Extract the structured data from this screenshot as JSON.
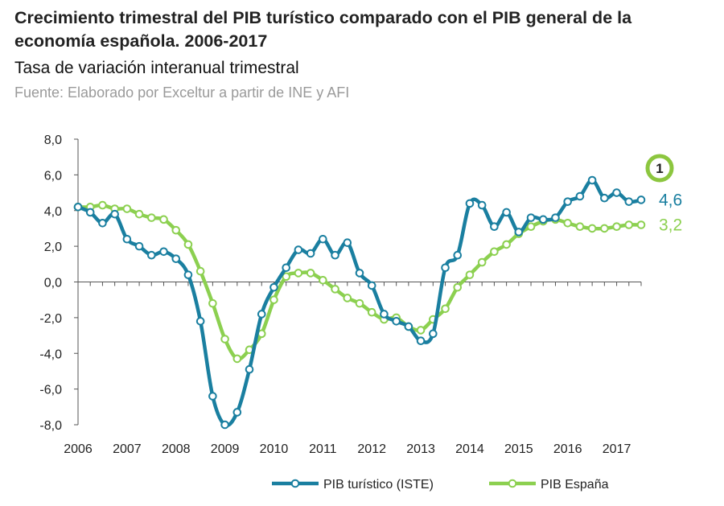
{
  "header": {
    "title": "Crecimiento  trimestral del PIB turístico comparado con el PIB general de la economía española. 2006-2017",
    "subtitle": "Tasa de variación interanual trimestral",
    "source": "Fuente:  Elaborado por Exceltur a partir de INE y AFI"
  },
  "badge": {
    "label": "1",
    "color": "#8cc63f"
  },
  "chart_data": {
    "type": "line",
    "title": "Crecimiento  trimestral del PIB turístico comparado con el PIB general de la economía española. 2006-2017",
    "subtitle": "Tasa de variación interanual trimestral",
    "xlabel": "",
    "ylabel": "",
    "ylim": [
      -8.0,
      8.0
    ],
    "y_ticks": [
      "8,0",
      "6,0",
      "4,0",
      "2,0",
      "0,0",
      "-2,0",
      "-4,0",
      "-6,0",
      "-8,0"
    ],
    "x_ticks": [
      "2006",
      "2007",
      "2008",
      "2009",
      "2010",
      "2011",
      "2012",
      "2013",
      "2014",
      "2015",
      "2016",
      "2017"
    ],
    "grid": false,
    "legend": "bottom",
    "x_start_year": 2006,
    "series": [
      {
        "name": "PIB turístico (ISTE)",
        "color": "#1a7fa0",
        "end_label": "4,6",
        "values": [
          4.2,
          3.9,
          3.3,
          3.8,
          2.4,
          2.0,
          1.5,
          1.7,
          1.3,
          0.4,
          -2.2,
          -6.4,
          -8.0,
          -7.3,
          -4.9,
          -1.8,
          -0.3,
          0.8,
          1.8,
          1.6,
          2.4,
          1.5,
          2.2,
          0.5,
          -0.2,
          -1.8,
          -2.2,
          -2.5,
          -3.3,
          -2.9,
          0.8,
          1.5,
          4.4,
          4.3,
          3.1,
          3.9,
          2.8,
          3.6,
          3.5,
          3.6,
          4.5,
          4.8,
          5.7,
          4.7,
          5.0,
          4.5,
          4.6
        ]
      },
      {
        "name": "PIB España",
        "color": "#8cd050",
        "end_label": "3,2",
        "values": [
          4.2,
          4.2,
          4.3,
          4.1,
          4.1,
          3.8,
          3.6,
          3.5,
          2.9,
          2.1,
          0.6,
          -1.2,
          -3.2,
          -4.3,
          -3.8,
          -2.9,
          -1.0,
          0.3,
          0.5,
          0.5,
          0.1,
          -0.4,
          -0.9,
          -1.2,
          -1.7,
          -2.1,
          -2.0,
          -2.5,
          -2.7,
          -2.1,
          -1.5,
          -0.3,
          0.4,
          1.1,
          1.7,
          2.1,
          2.7,
          3.1,
          3.4,
          3.5,
          3.3,
          3.1,
          3.0,
          3.0,
          3.1,
          3.2,
          3.2
        ]
      }
    ]
  }
}
